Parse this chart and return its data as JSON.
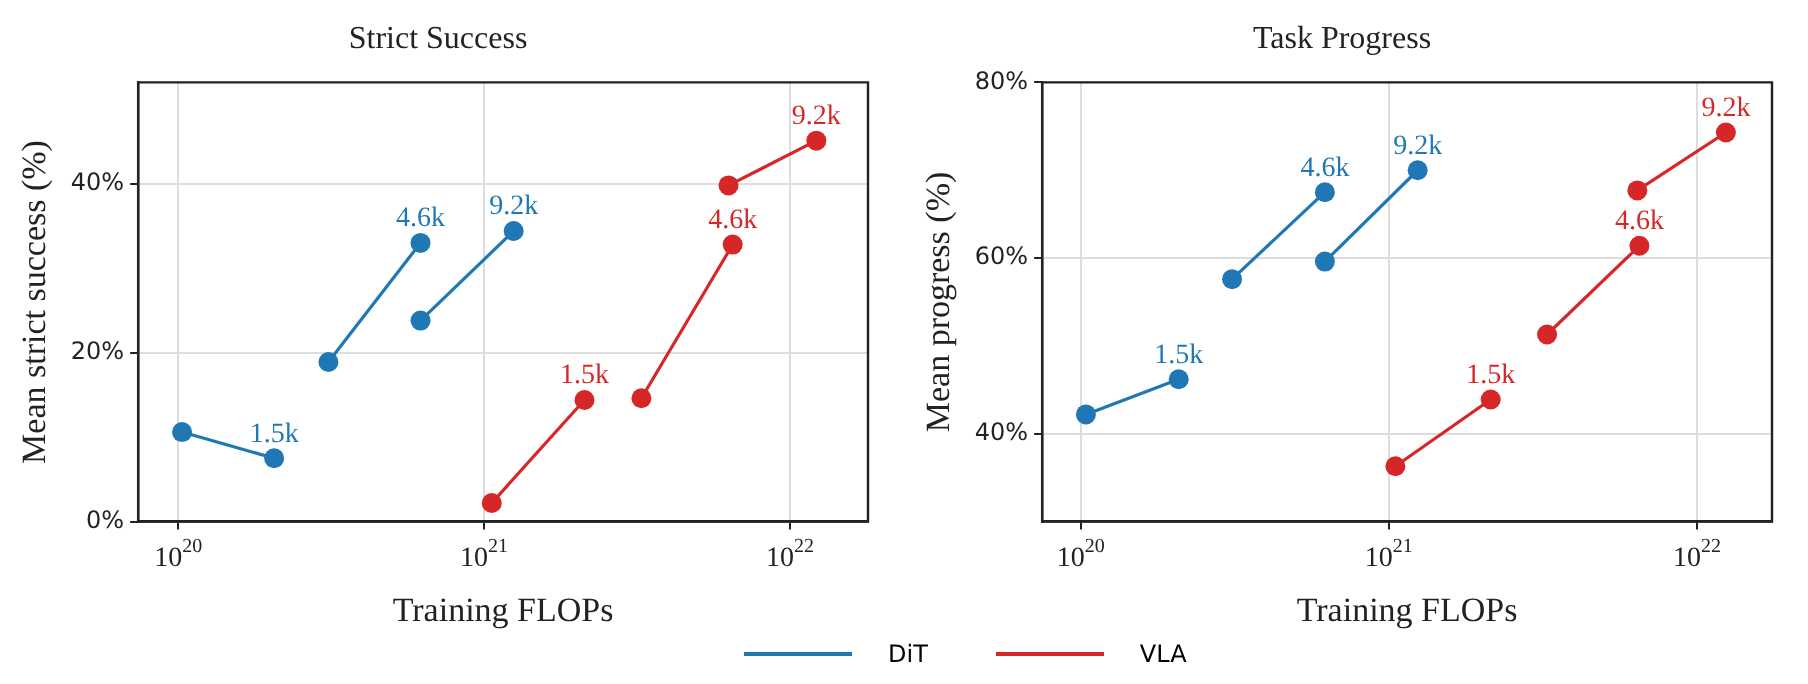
{
  "chart_data": [
    {
      "type": "line",
      "title": "Strict Success",
      "xlabel": "Training FLOPs",
      "ylabel": "Mean strict success (%)",
      "log": "x",
      "grid": true,
      "legend": "bottom",
      "marker": "circle",
      "line_style": "solid",
      "xlim": [
        7.4e+19,
        1.8e+22
      ],
      "xticks": [
        {
          "value": 1e+20,
          "label": "10$^{20}$"
        },
        {
          "value": 1e+21,
          "label": "10$^{21}$"
        },
        {
          "value": 1e+22,
          "label": "10$^{22}$"
        }
      ],
      "ylim": [
        0,
        52
      ],
      "yticks": [
        {
          "value": 0,
          "label": "0%"
        },
        {
          "value": 20,
          "label": "20%"
        },
        {
          "value": 40,
          "label": "40%"
        }
      ],
      "series": [
        {
          "name": "DiT",
          "color": "#1f77b4",
          "x": [
            1.03e+20,
            2.06e+20
          ],
          "values": [
            10.6,
            7.5
          ]
        },
        {
          "color": "#1f77b4",
          "x": [
            3.1e+20,
            6.2e+20
          ],
          "values": [
            18.9,
            33.0
          ]
        },
        {
          "color": "#1f77b4",
          "x": [
            6.2e+20,
            1.25e+21
          ],
          "values": [
            23.8,
            34.4
          ]
        },
        {
          "name": "VLA",
          "color": "#d62728",
          "x": [
            1.06e+21,
            2.13e+21
          ],
          "values": [
            2.2,
            14.4
          ]
        },
        {
          "color": "#d62728",
          "x": [
            3.27e+21,
            6.5e+21
          ],
          "values": [
            14.6,
            32.8
          ]
        },
        {
          "color": "#d62728",
          "x": [
            6.3e+21,
            1.22e+22
          ],
          "values": [
            39.8,
            45.1
          ]
        }
      ],
      "annotations": [
        {
          "text": "1.5k",
          "x": 2.06e+20,
          "y": 7.5
        },
        {
          "text": "4.6k",
          "x": 6.2e+20,
          "y": 33.0
        },
        {
          "text": "9.2k",
          "x": 1.25e+21,
          "y": 34.4
        },
        {
          "text": "1.5k",
          "x": 2.13e+21,
          "y": 14.4
        },
        {
          "text": "4.6k",
          "x": 6.5e+21,
          "y": 32.8
        },
        {
          "text": "9.2k",
          "x": 1.22e+22,
          "y": 45.1
        }
      ]
    },
    {
      "type": "line",
      "title": "Task Progress",
      "xlabel": "Training FLOPs",
      "ylabel": "Mean progress (%)",
      "log": "x",
      "grid": true,
      "marker": "circle",
      "line_style": "solid",
      "xlim": [
        7.5e+19,
        1.75e+22
      ],
      "xticks": [
        {
          "value": 1e+20,
          "label": "10$^{20}$"
        },
        {
          "value": 1e+21,
          "label": "10$^{21}$"
        },
        {
          "value": 1e+22,
          "label": "10$^{22}$"
        }
      ],
      "ylim": [
        30,
        80
      ],
      "yticks": [
        {
          "value": 40,
          "label": "40%"
        },
        {
          "value": 60,
          "label": "60%"
        },
        {
          "value": 80,
          "label": "80%"
        }
      ],
      "series": [
        {
          "color": "#1f77b4",
          "x": [
            1.04e+20,
            2.08e+20
          ],
          "values": [
            42.2,
            46.2
          ]
        },
        {
          "color": "#1f77b4",
          "x": [
            3.1e+20,
            6.2e+20
          ],
          "values": [
            57.6,
            67.5
          ]
        },
        {
          "color": "#1f77b4",
          "x": [
            6.2e+20,
            1.24e+21
          ],
          "values": [
            59.6,
            70.0
          ]
        },
        {
          "color": "#d62728",
          "x": [
            1.05e+21,
            2.14e+21
          ],
          "values": [
            36.3,
            43.9
          ]
        },
        {
          "color": "#d62728",
          "x": [
            3.26e+21,
            6.5e+21
          ],
          "values": [
            51.3,
            61.4
          ]
        },
        {
          "color": "#d62728",
          "x": [
            6.4e+21,
            1.24e+22
          ],
          "values": [
            67.7,
            74.3
          ]
        }
      ],
      "annotations": [
        {
          "text": "1.5k",
          "x": 2.08e+20,
          "y": 46.2
        },
        {
          "text": "4.6k",
          "x": 6.2e+20,
          "y": 67.5
        },
        {
          "text": "9.2k",
          "x": 1.24e+21,
          "y": 70.0
        },
        {
          "text": "1.5k",
          "x": 2.14e+21,
          "y": 43.9
        },
        {
          "text": "4.6k",
          "x": 6.5e+21,
          "y": 61.4
        },
        {
          "text": "9.2k",
          "x": 1.24e+22,
          "y": 74.3
        }
      ]
    }
  ]
}
